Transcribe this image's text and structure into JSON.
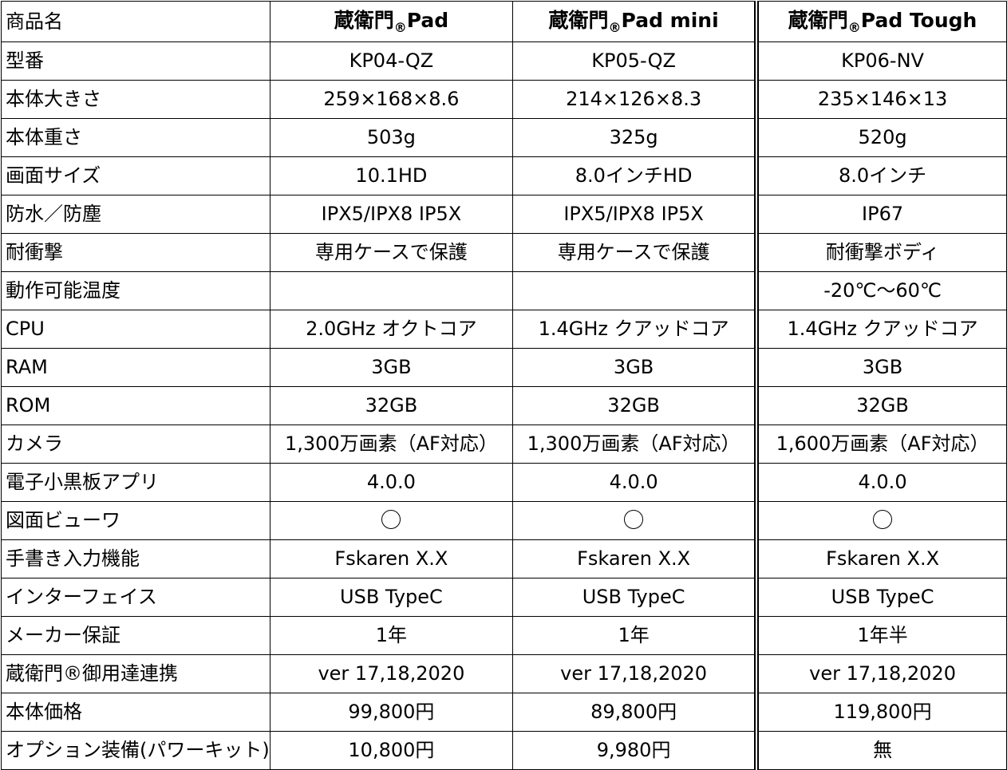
{
  "table": {
    "header": {
      "label": "商品名",
      "products": [
        {
          "brand": "蔵衛門",
          "mark": "®",
          "model": "Pad"
        },
        {
          "brand": "蔵衛門",
          "mark": "®",
          "model": "Pad mini"
        },
        {
          "brand": "蔵衛門",
          "mark": "®",
          "model": "Pad Tough"
        }
      ]
    },
    "rows": [
      {
        "label": "型番",
        "values": [
          "KP04-QZ",
          "KP05-QZ",
          "KP06-NV"
        ]
      },
      {
        "label": "本体大きさ",
        "values": [
          "259×168×8.6",
          "214×126×8.3",
          "235×146×13"
        ]
      },
      {
        "label": "本体重さ",
        "values": [
          "503g",
          "325g",
          "520g"
        ]
      },
      {
        "label": "画面サイズ",
        "values": [
          "10.1HD",
          "8.0インチHD",
          "8.0インチ"
        ]
      },
      {
        "label": "防水／防塵",
        "values": [
          "IPX5/IPX8 IP5X",
          "IPX5/IPX8 IP5X",
          "IP67"
        ]
      },
      {
        "label": "耐衝撃",
        "values": [
          "専用ケースで保護",
          "専用ケースで保護",
          "耐衝撃ボディ"
        ]
      },
      {
        "label": "動作可能温度",
        "values": [
          "",
          "",
          "-20℃～60℃"
        ]
      },
      {
        "label": "CPU",
        "values": [
          "2.0GHz オクトコア",
          "1.4GHz クアッドコア",
          "1.4GHz クアッドコア"
        ]
      },
      {
        "label": "RAM",
        "values": [
          "3GB",
          "3GB",
          "3GB"
        ]
      },
      {
        "label": "ROM",
        "values": [
          "32GB",
          "32GB",
          "32GB"
        ]
      },
      {
        "label": "カメラ",
        "values": [
          "1,300万画素（AF対応）",
          "1,300万画素（AF対応）",
          "1,600万画素（AF対応）"
        ]
      },
      {
        "label": "電子小黒板アプリ",
        "values": [
          "4.0.0",
          "4.0.0",
          "4.0.0"
        ]
      },
      {
        "label": "図面ビューワ",
        "values": [
          "○",
          "○",
          "○"
        ]
      },
      {
        "label": "手書き入力機能",
        "values": [
          "Fskaren X.X",
          "Fskaren X.X",
          "Fskaren X.X"
        ]
      },
      {
        "label": "インターフェイス",
        "values": [
          "USB TypeC",
          "USB TypeC",
          "USB TypeC"
        ]
      },
      {
        "label": "メーカー保証",
        "values": [
          "1年",
          "1年",
          "1年半"
        ]
      },
      {
        "label": "蔵衛門®御用達連携",
        "values": [
          "ver 17,18,2020",
          "ver 17,18,2020",
          "ver 17,18,2020"
        ]
      },
      {
        "label": "本体価格",
        "values": [
          "99,800円",
          "89,800円",
          "119,800円"
        ]
      },
      {
        "label": "オプション装備(パワーキット)",
        "values": [
          "10,800円",
          "9,980円",
          "無"
        ]
      }
    ]
  }
}
